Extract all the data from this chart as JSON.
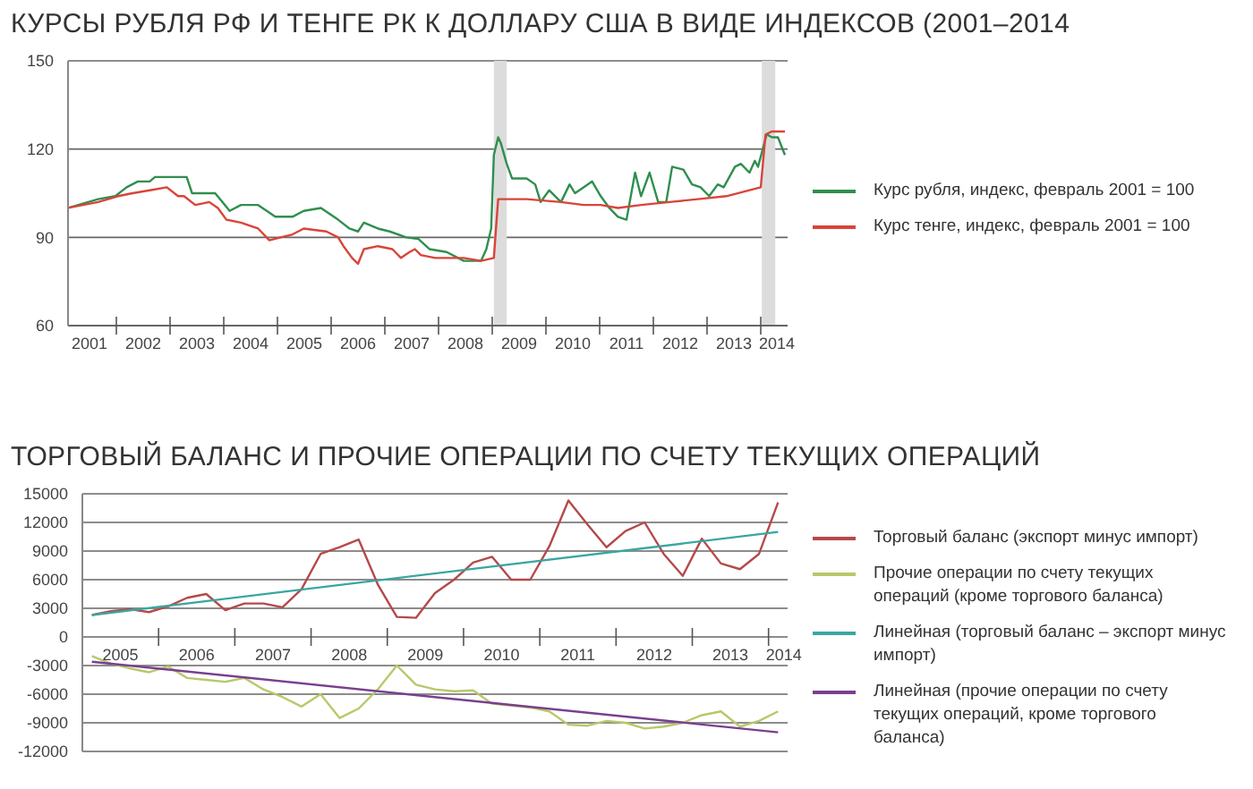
{
  "chart_data": [
    {
      "type": "line",
      "title": "КУРСЫ РУБЛЯ РФ И ТЕНГЕ РК К ДОЛЛАРУ США В ВИДЕ ИНДЕКСОВ (2001–2014",
      "xlim": [
        2001.1,
        2014.5
      ],
      "ylim": [
        60,
        150
      ],
      "yticks": [
        60,
        90,
        120,
        150
      ],
      "grid": "y",
      "legend": "right",
      "xticks": [
        {
          "value": 2002,
          "label": null
        },
        {
          "value": 2003,
          "label": null
        },
        {
          "value": 2004,
          "label": null
        },
        {
          "value": 2005,
          "label": null
        },
        {
          "value": 2006,
          "label": null
        },
        {
          "value": 2007,
          "label": null
        },
        {
          "value": 2008,
          "label": null
        },
        {
          "value": 2009,
          "label": null
        },
        {
          "value": 2010,
          "label": null
        },
        {
          "value": 2011,
          "label": null
        },
        {
          "value": 2012,
          "label": null
        },
        {
          "value": 2013,
          "label": null
        },
        {
          "value": 2014,
          "label": null
        },
        {
          "value": 2001.5,
          "label": "2001"
        },
        {
          "value": 2002.5,
          "label": "2002"
        },
        {
          "value": 2003.5,
          "label": "2003"
        },
        {
          "value": 2004.5,
          "label": "2004"
        },
        {
          "value": 2005.5,
          "label": "2005"
        },
        {
          "value": 2006.5,
          "label": "2006"
        },
        {
          "value": 2007.5,
          "label": "2007"
        },
        {
          "value": 2008.5,
          "label": "2008"
        },
        {
          "value": 2009.5,
          "label": "2009"
        },
        {
          "value": 2010.5,
          "label": "2010"
        },
        {
          "value": 2011.5,
          "label": "2011"
        },
        {
          "value": 2012.5,
          "label": "2012"
        },
        {
          "value": 2013.5,
          "label": "2013"
        },
        {
          "value": 2014.3,
          "label": "2014"
        }
      ],
      "bands": [
        {
          "axis": "x",
          "from": 2009.03,
          "to": 2009.27,
          "color": "#dcdcdc"
        },
        {
          "axis": "x",
          "from": 2014.02,
          "to": 2014.27,
          "color": "#dcdcdc"
        }
      ],
      "series": [
        {
          "name": "Курс рубля, индекс, февраль 2001 = 100",
          "color": "#2f8f4e",
          "x": [
            2001.1,
            2001.66,
            2001.98,
            2002.19,
            2002.4,
            2002.62,
            2002.72,
            2003.26,
            2003.31,
            2003.41,
            2003.84,
            2004.11,
            2004.32,
            2004.64,
            2004.96,
            2005.28,
            2005.49,
            2005.81,
            2006.13,
            2006.34,
            2006.5,
            2006.61,
            2006.87,
            2007.09,
            2007.4,
            2007.62,
            2007.83,
            2008.15,
            2008.47,
            2008.79,
            2008.89,
            2008.98,
            2009.03,
            2009.11,
            2009.16,
            2009.27,
            2009.37,
            2009.64,
            2009.8,
            2009.9,
            2010.06,
            2010.28,
            2010.44,
            2010.54,
            2010.7,
            2010.86,
            2011.02,
            2011.18,
            2011.34,
            2011.5,
            2011.66,
            2011.77,
            2011.93,
            2012.09,
            2012.24,
            2012.35,
            2012.56,
            2012.72,
            2012.88,
            2013.04,
            2013.2,
            2013.31,
            2013.52,
            2013.63,
            2013.79,
            2013.89,
            2013.95,
            2014.11,
            2014.21,
            2014.32,
            2014.45
          ],
          "values": [
            100,
            103,
            104,
            107,
            109,
            109,
            110.5,
            110.5,
            110.5,
            105,
            105,
            99,
            101,
            101,
            97,
            97,
            99,
            100,
            96,
            93,
            92,
            95,
            93,
            92,
            90,
            89.5,
            86,
            85,
            82,
            82,
            86,
            93,
            118,
            124,
            122,
            115,
            110,
            110,
            108,
            102,
            106,
            102,
            108,
            105,
            107,
            109,
            104,
            100,
            97,
            96,
            112,
            104,
            112,
            102,
            102,
            114,
            113,
            108,
            107,
            104,
            108,
            107,
            114,
            115,
            112,
            116,
            114,
            125,
            124,
            124,
            118
          ]
        },
        {
          "name": "Курс тенге, индекс, февраль 2001 = 100",
          "color": "#d9443a",
          "x": [
            2001.1,
            2001.66,
            2002.03,
            2002.3,
            2002.62,
            2002.94,
            2003.15,
            2003.26,
            2003.47,
            2003.73,
            2003.89,
            2004.05,
            2004.32,
            2004.64,
            2004.85,
            2005.06,
            2005.28,
            2005.49,
            2005.91,
            2006.13,
            2006.23,
            2006.39,
            2006.5,
            2006.61,
            2006.87,
            2007.14,
            2007.3,
            2007.46,
            2007.56,
            2007.67,
            2007.94,
            2008.47,
            2008.79,
            2009.03,
            2009.11,
            2009.64,
            2010.28,
            2010.7,
            2011.02,
            2011.34,
            2011.77,
            2012.3,
            2012.83,
            2013.36,
            2013.79,
            2014,
            2014.09,
            2014.21,
            2014.45
          ],
          "values": [
            100,
            102,
            104,
            105,
            106,
            107,
            104,
            104,
            101,
            102,
            100,
            96,
            95,
            93,
            89,
            90,
            91,
            93,
            92,
            90,
            87,
            83,
            81,
            86,
            87,
            86,
            83,
            85,
            86,
            84,
            83,
            83,
            82,
            83,
            103,
            103,
            102,
            101,
            101,
            100,
            101,
            102,
            103,
            104,
            106,
            107,
            125,
            126,
            126
          ]
        }
      ]
    },
    {
      "type": "line",
      "title": "ТОРГОВЫЙ БАЛАНС И ПРОЧИЕ ОПЕРАЦИИ ПО СЧЕТУ ТЕКУЩИХ ОПЕРАЦИЙ",
      "xlim": [
        2005,
        2014.25
      ],
      "ylim": [
        -12000,
        15000
      ],
      "yticks": [
        -12000,
        -9000,
        -6000,
        -3000,
        0,
        3000,
        6000,
        9000,
        12000,
        15000
      ],
      "grid": "y",
      "legend": "right",
      "xticks": [
        {
          "value": 2006,
          "label": null
        },
        {
          "value": 2007,
          "label": null
        },
        {
          "value": 2008,
          "label": null
        },
        {
          "value": 2009,
          "label": null
        },
        {
          "value": 2010,
          "label": null
        },
        {
          "value": 2011,
          "label": null
        },
        {
          "value": 2012,
          "label": null
        },
        {
          "value": 2013,
          "label": null
        },
        {
          "value": 2014,
          "label": null
        },
        {
          "value": 2005.5,
          "label": "2005"
        },
        {
          "value": 2006.5,
          "label": "2006"
        },
        {
          "value": 2007.5,
          "label": "2007"
        },
        {
          "value": 2008.5,
          "label": "2008"
        },
        {
          "value": 2009.5,
          "label": "2009"
        },
        {
          "value": 2010.5,
          "label": "2010"
        },
        {
          "value": 2011.5,
          "label": "2011"
        },
        {
          "value": 2012.5,
          "label": "2012"
        },
        {
          "value": 2013.5,
          "label": "2013"
        },
        {
          "value": 2014.2,
          "label": "2014"
        }
      ],
      "x": [
        2005.125,
        2005.375,
        2005.625,
        2005.875,
        2006.125,
        2006.375,
        2006.625,
        2006.875,
        2007.125,
        2007.375,
        2007.625,
        2007.875,
        2008.125,
        2008.375,
        2008.625,
        2008.875,
        2009.125,
        2009.375,
        2009.625,
        2009.875,
        2010.125,
        2010.375,
        2010.625,
        2010.875,
        2011.125,
        2011.375,
        2011.625,
        2011.875,
        2012.125,
        2012.375,
        2012.625,
        2012.875,
        2013.125,
        2013.375,
        2013.625,
        2013.875,
        2014.125
      ],
      "series": [
        {
          "name": "Торговый баланс (экспорт минус импорт)",
          "color": "#b5494a",
          "values": [
            2300,
            2700,
            2900,
            2600,
            3200,
            4100,
            4500,
            2800,
            3500,
            3500,
            3100,
            5000,
            8700,
            9400,
            10200,
            5500,
            2100,
            2000,
            4600,
            6000,
            7800,
            8400,
            6000,
            6000,
            9500,
            14300,
            11800,
            9400,
            11100,
            12000,
            8700,
            6400,
            10300,
            7700,
            7100,
            8700,
            14100
          ]
        },
        {
          "name": "Прочие операции по счету текущих операций (кроме торгового баланса)",
          "color": "#b8c86a",
          "values": [
            -2000,
            -2800,
            -3300,
            -3700,
            -3100,
            -4300,
            -4500,
            -4700,
            -4300,
            -5500,
            -6300,
            -7300,
            -6000,
            -8500,
            -7500,
            -5500,
            -3000,
            -5000,
            -5500,
            -5700,
            -5600,
            -7000,
            -7200,
            -7400,
            -7800,
            -9200,
            -9300,
            -8800,
            -9000,
            -9600,
            -9400,
            -9000,
            -8200,
            -7800,
            -9400,
            -8800,
            -7800
          ]
        },
        {
          "name": "Линейная (торговый баланс – экспорт минус импорт)",
          "color": "#3aa6a0",
          "x": [
            2005.125,
            2014.125
          ],
          "values": [
            2300,
            11000
          ]
        },
        {
          "name": "Линейная (прочие операции по счету текущих операций, кроме торгового баланса)",
          "color": "#7a3f8f",
          "x": [
            2005.125,
            2014.125
          ],
          "values": [
            -2600,
            -10000
          ]
        }
      ]
    }
  ]
}
